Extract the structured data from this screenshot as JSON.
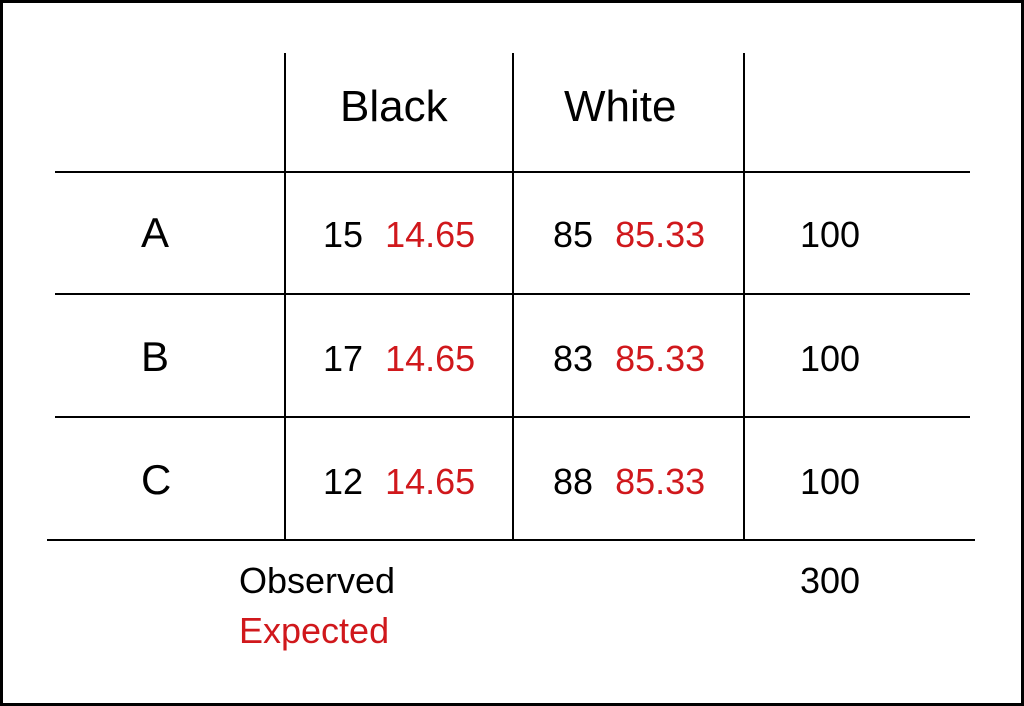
{
  "colors": {
    "observed": "#000000",
    "expected": "#d0181c"
  },
  "table": {
    "columns": [
      "Black",
      "White"
    ],
    "rows": [
      {
        "label": "A",
        "black_observed": "15",
        "black_expected": "14.65",
        "white_observed": "85",
        "white_expected": "85.33",
        "total": "100"
      },
      {
        "label": "B",
        "black_observed": "17",
        "black_expected": "14.65",
        "white_observed": "83",
        "white_expected": "85.33",
        "total": "100"
      },
      {
        "label": "C",
        "black_observed": "12",
        "black_expected": "14.65",
        "white_observed": "88",
        "white_expected": "85.33",
        "total": "100"
      }
    ],
    "grand_total": "300"
  },
  "legend": {
    "observed": "Observed",
    "expected": "Expected"
  }
}
